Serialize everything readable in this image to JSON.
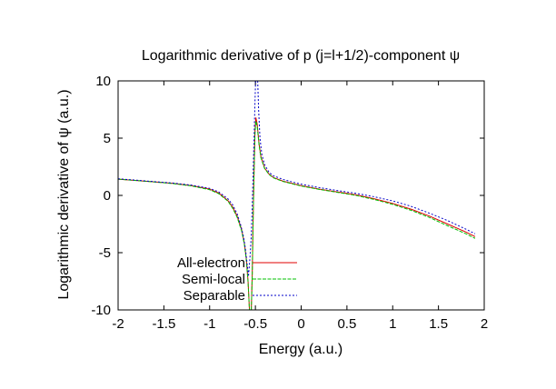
{
  "chart_data": {
    "type": "line",
    "title": "Logarithmic derivative of p (j=l+1/2)-component ψ",
    "xlabel": "Energy (a.u.)",
    "ylabel": "Logarithmic derivative of ψ (a.u.)",
    "xlim": [
      -2,
      2
    ],
    "ylim": [
      -10,
      10
    ],
    "xticks": [
      -2,
      -1.5,
      -1,
      -0.5,
      0,
      0.5,
      1,
      1.5,
      2
    ],
    "yticks": [
      -10,
      -5,
      0,
      5,
      10
    ],
    "xtick_labels": [
      "-2",
      "-1.5",
      "-1",
      "-0.5",
      "0",
      "0.5",
      "1",
      "1.5",
      "2"
    ],
    "ytick_labels": [
      "-10",
      "-5",
      "0",
      "5",
      "10"
    ],
    "grid": false,
    "legend_position": "bottom-left",
    "series": [
      {
        "name": "All-electron",
        "color": "#e00000",
        "dash": "solid",
        "segments": [
          [
            [
              -2.0,
              1.42
            ],
            [
              -1.8,
              1.3
            ],
            [
              -1.6,
              1.18
            ],
            [
              -1.4,
              1.05
            ],
            [
              -1.2,
              0.85
            ],
            [
              -1.0,
              0.55
            ],
            [
              -0.9,
              0.2
            ],
            [
              -0.8,
              -0.45
            ],
            [
              -0.75,
              -1.0
            ],
            [
              -0.7,
              -1.8
            ],
            [
              -0.65,
              -3.0
            ],
            [
              -0.62,
              -4.2
            ],
            [
              -0.6,
              -5.5
            ],
            [
              -0.58,
              -7.5
            ],
            [
              -0.565,
              -10.0
            ]
          ],
          [
            [
              -0.545,
              -10.0
            ],
            [
              -0.535,
              -7.0
            ],
            [
              -0.525,
              -2.0
            ],
            [
              -0.515,
              2.0
            ],
            [
              -0.505,
              5.5
            ],
            [
              -0.495,
              6.8
            ],
            [
              -0.48,
              6.2
            ],
            [
              -0.46,
              4.5
            ],
            [
              -0.44,
              3.4
            ],
            [
              -0.4,
              2.4
            ],
            [
              -0.35,
              1.85
            ],
            [
              -0.3,
              1.55
            ],
            [
              -0.2,
              1.25
            ],
            [
              -0.1,
              1.05
            ],
            [
              0.0,
              0.85
            ],
            [
              0.2,
              0.55
            ],
            [
              0.4,
              0.3
            ],
            [
              0.6,
              0.05
            ],
            [
              0.8,
              -0.3
            ],
            [
              1.0,
              -0.7
            ],
            [
              1.2,
              -1.2
            ],
            [
              1.4,
              -1.8
            ],
            [
              1.6,
              -2.5
            ],
            [
              1.8,
              -3.2
            ],
            [
              1.9,
              -3.6
            ]
          ]
        ]
      },
      {
        "name": "Semi-local",
        "color": "#00c000",
        "dash": "4,1.5",
        "segments": [
          [
            [
              -2.0,
              1.42
            ],
            [
              -1.8,
              1.3
            ],
            [
              -1.6,
              1.17
            ],
            [
              -1.4,
              1.03
            ],
            [
              -1.2,
              0.83
            ],
            [
              -1.0,
              0.5
            ],
            [
              -0.9,
              0.15
            ],
            [
              -0.8,
              -0.5
            ],
            [
              -0.75,
              -1.1
            ],
            [
              -0.7,
              -1.9
            ],
            [
              -0.65,
              -3.1
            ],
            [
              -0.62,
              -4.3
            ],
            [
              -0.6,
              -5.6
            ],
            [
              -0.58,
              -7.6
            ],
            [
              -0.565,
              -10.0
            ]
          ],
          [
            [
              -0.545,
              -10.0
            ],
            [
              -0.535,
              -7.2
            ],
            [
              -0.525,
              -2.2
            ],
            [
              -0.515,
              1.8
            ],
            [
              -0.505,
              5.3
            ],
            [
              -0.495,
              6.5
            ],
            [
              -0.48,
              6.0
            ],
            [
              -0.46,
              4.4
            ],
            [
              -0.44,
              3.3
            ],
            [
              -0.4,
              2.35
            ],
            [
              -0.35,
              1.82
            ],
            [
              -0.3,
              1.52
            ],
            [
              -0.2,
              1.22
            ],
            [
              -0.1,
              1.02
            ],
            [
              0.0,
              0.82
            ],
            [
              0.2,
              0.52
            ],
            [
              0.4,
              0.26
            ],
            [
              0.6,
              0.0
            ],
            [
              0.8,
              -0.36
            ],
            [
              1.0,
              -0.78
            ],
            [
              1.2,
              -1.3
            ],
            [
              1.4,
              -1.92
            ],
            [
              1.6,
              -2.65
            ],
            [
              1.8,
              -3.35
            ],
            [
              1.9,
              -3.75
            ]
          ]
        ]
      },
      {
        "name": "Separable",
        "color": "#0000c8",
        "dash": "2,2",
        "segments": [
          [
            [
              -2.0,
              1.45
            ],
            [
              -1.8,
              1.33
            ],
            [
              -1.6,
              1.2
            ],
            [
              -1.4,
              1.08
            ],
            [
              -1.2,
              0.9
            ],
            [
              -1.0,
              0.62
            ],
            [
              -0.9,
              0.3
            ],
            [
              -0.8,
              -0.3
            ],
            [
              -0.75,
              -0.8
            ],
            [
              -0.7,
              -1.6
            ],
            [
              -0.66,
              -2.6
            ],
            [
              -0.63,
              -3.6
            ],
            [
              -0.61,
              -4.6
            ],
            [
              -0.59,
              -6.0
            ],
            [
              -0.575,
              -7.0
            ]
          ],
          [
            [
              -0.575,
              -7.0
            ],
            [
              -0.56,
              -5.5
            ],
            [
              -0.545,
              -3.5
            ],
            [
              -0.535,
              -1.0
            ],
            [
              -0.525,
              2.0
            ],
            [
              -0.515,
              5.0
            ],
            [
              -0.505,
              8.0
            ],
            [
              -0.498,
              10.0
            ]
          ],
          [
            [
              -0.475,
              10.0
            ],
            [
              -0.465,
              7.5
            ],
            [
              -0.45,
              5.0
            ],
            [
              -0.43,
              3.6
            ],
            [
              -0.4,
              2.7
            ],
            [
              -0.35,
              2.0
            ],
            [
              -0.3,
              1.7
            ],
            [
              -0.2,
              1.4
            ],
            [
              -0.1,
              1.18
            ],
            [
              0.0,
              0.98
            ],
            [
              0.2,
              0.68
            ],
            [
              0.4,
              0.42
            ],
            [
              0.6,
              0.18
            ],
            [
              0.8,
              -0.12
            ],
            [
              1.0,
              -0.48
            ],
            [
              1.2,
              -0.95
            ],
            [
              1.4,
              -1.55
            ],
            [
              1.6,
              -2.2
            ],
            [
              1.8,
              -2.95
            ],
            [
              1.9,
              -3.35
            ]
          ]
        ]
      }
    ]
  }
}
